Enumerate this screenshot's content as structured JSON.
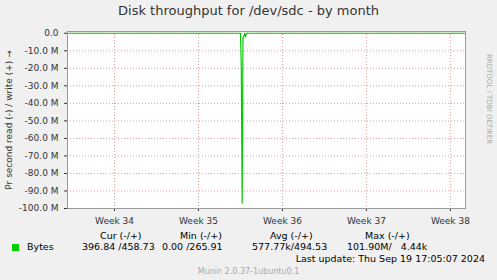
{
  "chart_data": {
    "type": "line",
    "title": "Disk throughput for /dev/sdc - by month",
    "y_label": "Pr second read (-) / write (+)",
    "x": [
      33.44,
      34,
      34.5,
      35,
      35.5,
      35.51,
      35.52,
      35.53,
      35.55,
      35.56,
      35.57,
      36,
      36.5,
      37,
      37.5,
      38,
      38.18
    ],
    "series": [
      {
        "name": "Bytes",
        "color": "#00cc00",
        "values": [
          0,
          0,
          0,
          0,
          0,
          -20000000,
          -97000000,
          -3000000,
          0,
          -2000000,
          0,
          0,
          0,
          0,
          0,
          0,
          0
        ]
      }
    ],
    "xlim": [
      33.44,
      38.18
    ],
    "xticks": [
      {
        "value": 34,
        "label": "Week 34"
      },
      {
        "value": 35,
        "label": "Week 35"
      },
      {
        "value": 36,
        "label": "Week 36"
      },
      {
        "value": 37,
        "label": "Week 37"
      },
      {
        "value": 38,
        "label": "Week 38"
      }
    ],
    "ylim": [
      -100000000,
      1000000
    ],
    "yticks": [
      {
        "value": 0,
        "label": "0.0"
      },
      {
        "value": -10000000,
        "label": "-10.0 M"
      },
      {
        "value": -20000000,
        "label": "-20.0 M"
      },
      {
        "value": -30000000,
        "label": "-30.0 M"
      },
      {
        "value": -40000000,
        "label": "-40.0 M"
      },
      {
        "value": -50000000,
        "label": "-50.0 M"
      },
      {
        "value": -60000000,
        "label": "-60.0 M"
      },
      {
        "value": -70000000,
        "label": "-70.0 M"
      },
      {
        "value": -80000000,
        "label": "-80.0 M"
      },
      {
        "value": -90000000,
        "label": "-90.0 M"
      },
      {
        "value": -100000000,
        "label": "-100.0 M"
      }
    ],
    "grid": true,
    "legend_table": {
      "columns": [
        "Cur (-/+)",
        "Min (-/+)",
        "Avg (-/+)",
        "Max (-/+)"
      ],
      "row": [
        "396.84 /458.73",
        "0.00 /265.91",
        "577.77k/494.53",
        "101.90M/   4.44k"
      ]
    },
    "last_update": "Last update: Thu Sep 19 17:05:07 2024",
    "footer": "Munin 2.0.37-1ubuntu0.1",
    "watermark": "RRDTOOL / TOBI OETIKER"
  }
}
